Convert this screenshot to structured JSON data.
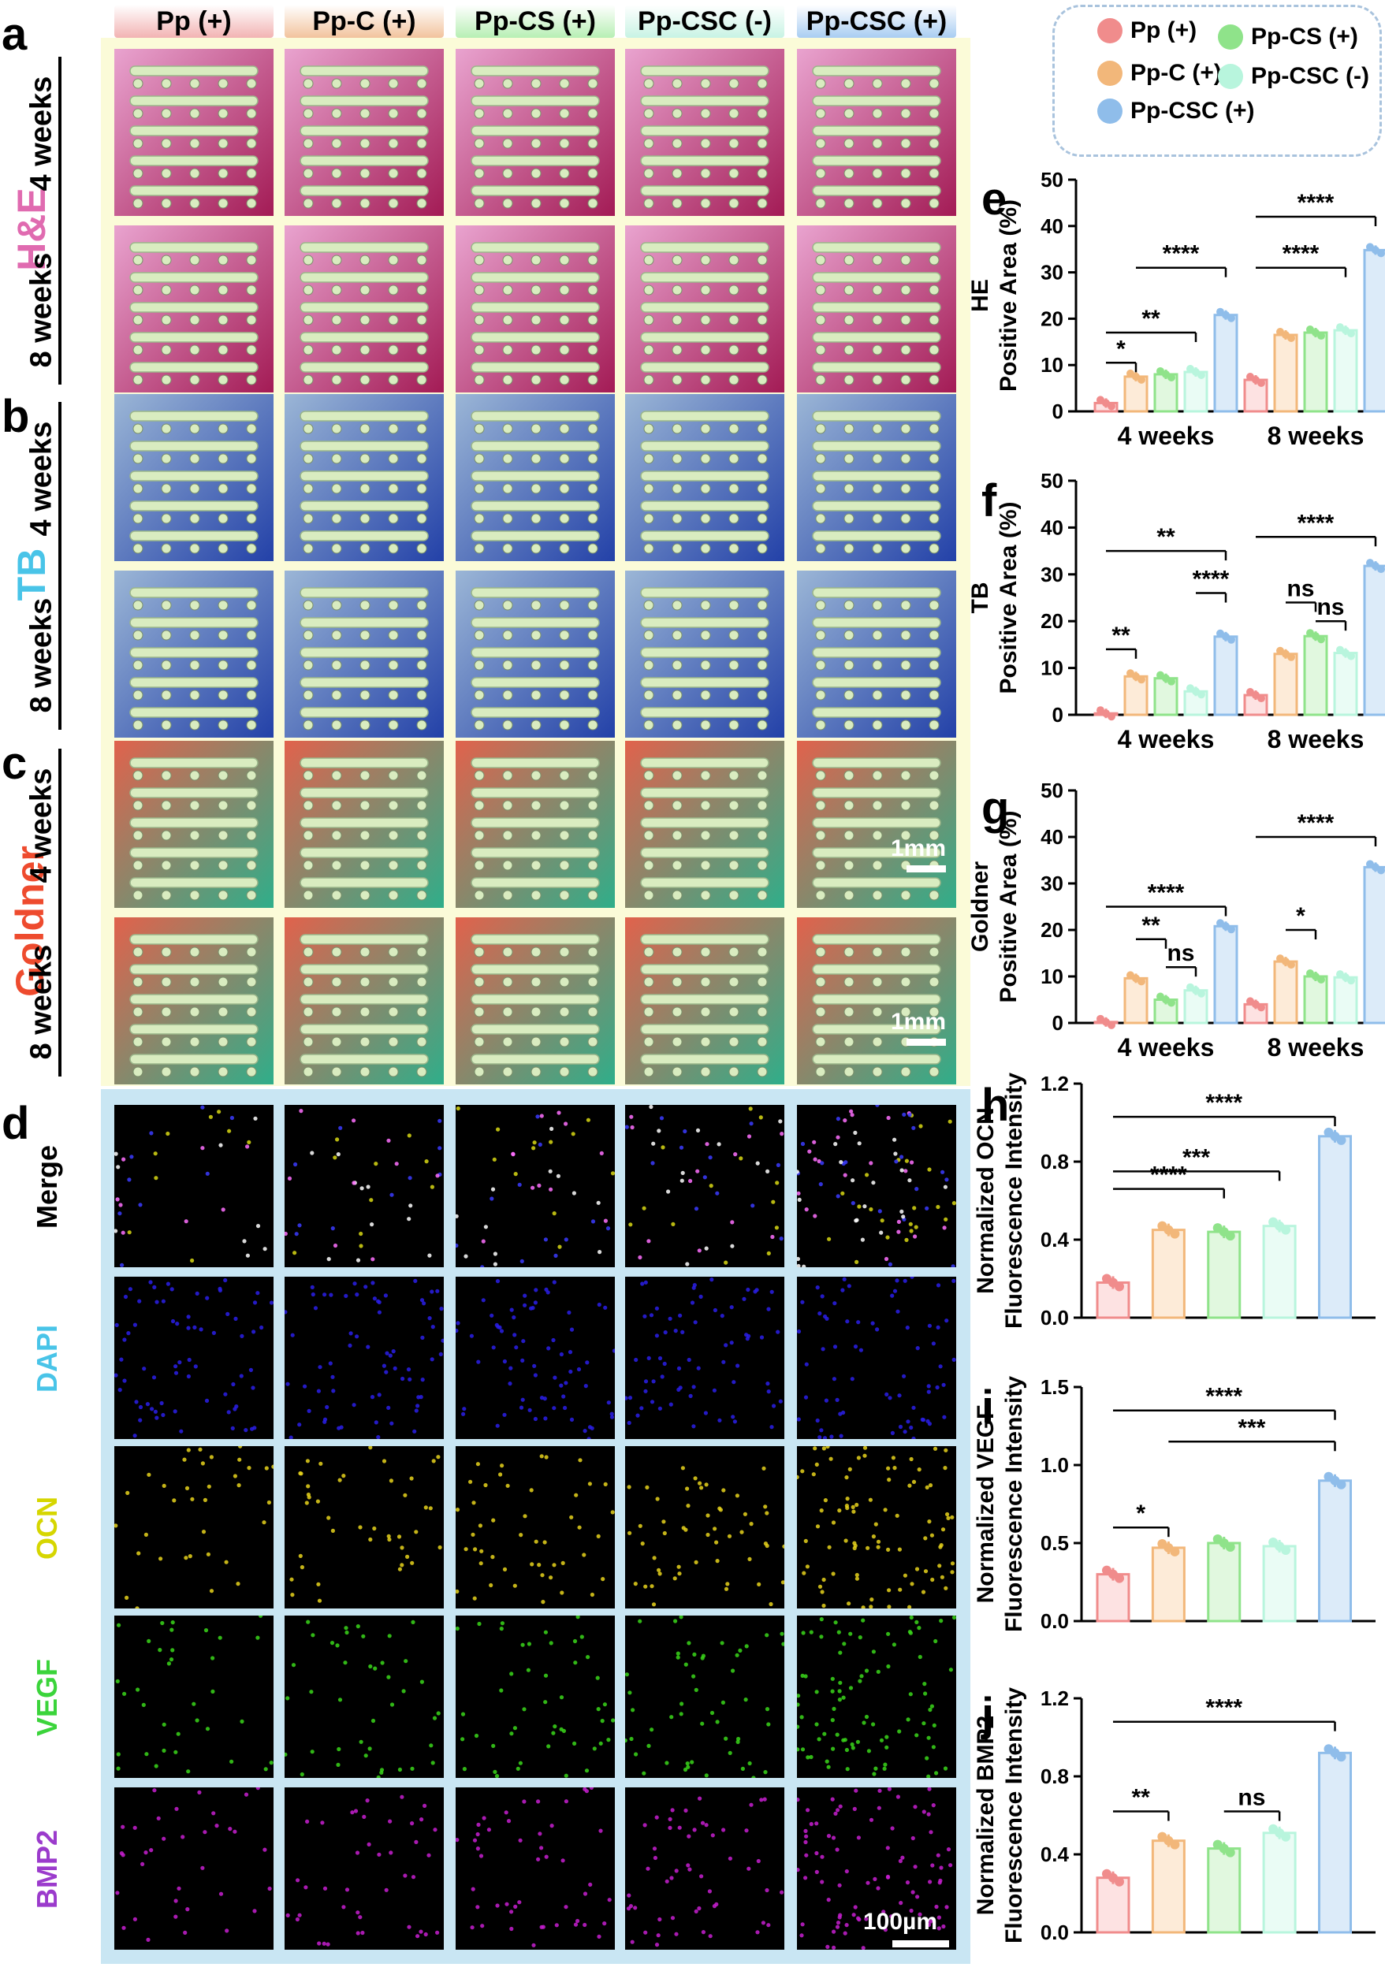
{
  "column_headers": [
    {
      "label": "Pp (+)",
      "color": "#f2b3b3"
    },
    {
      "label": "Pp-C (+)",
      "color": "#f2c39d"
    },
    {
      "label": "Pp-CS (+)",
      "color": "#b7efb4"
    },
    {
      "label": "Pp-CSC (-)",
      "color": "#c8f3e4"
    },
    {
      "label": "Pp-CSC (+)",
      "color": "#a9cdf2"
    }
  ],
  "panel_letters": {
    "a": "a",
    "b": "b",
    "c": "c",
    "d": "d",
    "e": "e",
    "f": "f",
    "g": "g",
    "h": "h",
    "i": "i",
    "j": "j"
  },
  "tissue": {
    "row_labels": [
      "4 weeks",
      "8 weeks"
    ],
    "stains": [
      {
        "label": "H&E",
        "color": "#e06bb0",
        "bg": [
          "#e9a3cf",
          "#a31b55"
        ]
      },
      {
        "label": "TB",
        "color": "#49c4e8",
        "bg": [
          "#9bb6d6",
          "#2341a8"
        ]
      },
      {
        "label": "Goldner",
        "color": "#ee4b2e",
        "bg": [
          "#e1624c",
          "#2fae8a"
        ]
      }
    ],
    "scalebar": "1mm"
  },
  "fluor": {
    "rows": [
      {
        "label": "Merge",
        "color": "#000000",
        "dot": "#ffffff"
      },
      {
        "label": "DAPI",
        "color": "#49c4e8",
        "dot": "#2a1fe8"
      },
      {
        "label": "OCN",
        "color": "#d6d600",
        "dot": "#e6d21c"
      },
      {
        "label": "VEGF",
        "color": "#3bd43b",
        "dot": "#39d61a"
      },
      {
        "label": "BMP2",
        "color": "#9b3bcc",
        "dot": "#c71ed0"
      }
    ],
    "scalebar": "100µm"
  },
  "legend": {
    "items": [
      {
        "label": "Pp (+)",
        "color": "#f08c8c"
      },
      {
        "label": "Pp-CS  (+)",
        "color": "#8fe38a"
      },
      {
        "label": "Pp-C (+)",
        "color": "#f2b77a"
      },
      {
        "label": "Pp-CSC (-)",
        "color": "#b8f5dd"
      },
      {
        "label": "Pp-CSC (+)",
        "color": "#8fbdea"
      }
    ]
  },
  "chart_data": [
    {
      "panel": "e",
      "type": "bar",
      "title": "",
      "ylabel": [
        "HE",
        "Positive Area  (%)"
      ],
      "ylim": [
        0,
        50
      ],
      "yticks": [
        "0",
        "10",
        "20",
        "30",
        "40",
        "50"
      ],
      "categories": [
        "4 weeks",
        "8 weeks"
      ],
      "series": [
        {
          "name": "Pp (+)",
          "values": [
            1.8,
            6.8
          ]
        },
        {
          "name": "Pp-C (+)",
          "values": [
            7.5,
            16.5
          ]
        },
        {
          "name": "Pp-CS (+)",
          "values": [
            8.0,
            17.0
          ]
        },
        {
          "name": "Pp-CSC (-)",
          "values": [
            8.5,
            17.5
          ]
        },
        {
          "name": "Pp-CSC (+)",
          "values": [
            20.8,
            34.8
          ]
        }
      ],
      "annotations": [
        "*",
        "**",
        "****",
        "****",
        "****"
      ]
    },
    {
      "panel": "f",
      "type": "bar",
      "title": "",
      "ylabel": [
        "TB",
        "Positive Area (%)"
      ],
      "ylim": [
        0,
        50
      ],
      "yticks": [
        "0",
        "10",
        "20",
        "30",
        "40",
        "50"
      ],
      "categories": [
        "4 weeks",
        "8 weeks"
      ],
      "series": [
        {
          "name": "Pp (+)",
          "values": [
            0.3,
            4.2
          ]
        },
        {
          "name": "Pp-C (+)",
          "values": [
            8.2,
            13.0
          ]
        },
        {
          "name": "Pp-CS (+)",
          "values": [
            7.8,
            16.8
          ]
        },
        {
          "name": "Pp-CSC (-)",
          "values": [
            5.0,
            13.2
          ]
        },
        {
          "name": "Pp-CSC (+)",
          "values": [
            16.7,
            31.8
          ]
        }
      ],
      "annotations": [
        "**",
        "**",
        "****",
        "ns",
        "ns",
        "****"
      ]
    },
    {
      "panel": "g",
      "type": "bar",
      "title": "",
      "ylabel": [
        "Goldner",
        "Positive Area (%)"
      ],
      "ylim": [
        0,
        50
      ],
      "yticks": [
        "0",
        "10",
        "20",
        "30",
        "40",
        "50"
      ],
      "categories": [
        "4 weeks",
        "8 weeks"
      ],
      "series": [
        {
          "name": "Pp (+)",
          "values": [
            0.2,
            4.0
          ]
        },
        {
          "name": "Pp-C (+)",
          "values": [
            9.6,
            13.2
          ]
        },
        {
          "name": "Pp-CS (+)",
          "values": [
            5.0,
            10.0
          ]
        },
        {
          "name": "Pp-CSC (-)",
          "values": [
            7.0,
            9.8
          ]
        },
        {
          "name": "Pp-CSC (+)",
          "values": [
            20.8,
            33.5
          ]
        }
      ],
      "annotations": [
        "**",
        "ns",
        "****",
        "*",
        "****"
      ]
    },
    {
      "panel": "h",
      "type": "bar",
      "title": "",
      "ylabel": [
        "Normalized OCN",
        "Fluorescence Intensity"
      ],
      "ylim": [
        0,
        1.2
      ],
      "yticks": [
        "0.0",
        "0.4",
        "0.8",
        "1.2"
      ],
      "categories": [
        "Pp (+)",
        "Pp-C (+)",
        "Pp-CS (+)",
        "Pp-CSC (-)",
        "Pp-CSC (+)"
      ],
      "values": [
        0.18,
        0.45,
        0.44,
        0.47,
        0.93
      ],
      "annotations": [
        "***",
        "****",
        "****"
      ]
    },
    {
      "panel": "i",
      "type": "bar",
      "title": "",
      "ylabel": [
        "Normalized VEGF",
        "Fluorescence Intensity"
      ],
      "ylim": [
        0,
        1.5
      ],
      "yticks": [
        "0.0",
        "0.5",
        "1.0",
        "1.5"
      ],
      "categories": [
        "Pp (+)",
        "Pp-C (+)",
        "Pp-CS (+)",
        "Pp-CSC (-)",
        "Pp-CSC (+)"
      ],
      "values": [
        0.3,
        0.47,
        0.5,
        0.48,
        0.9
      ],
      "annotations": [
        "*",
        "****",
        "***"
      ]
    },
    {
      "panel": "j",
      "type": "bar",
      "title": "",
      "ylabel": [
        "Normalized BMP2",
        "Fluorescence Intensity"
      ],
      "ylim": [
        0,
        1.2
      ],
      "yticks": [
        "0.0",
        "0.4",
        "0.8",
        "1.2"
      ],
      "categories": [
        "Pp (+)",
        "Pp-C (+)",
        "Pp-CS (+)",
        "Pp-CSC (-)",
        "Pp-CSC (+)"
      ],
      "values": [
        0.28,
        0.47,
        0.43,
        0.51,
        0.92
      ],
      "annotations": [
        "**",
        "ns",
        "****"
      ]
    }
  ]
}
